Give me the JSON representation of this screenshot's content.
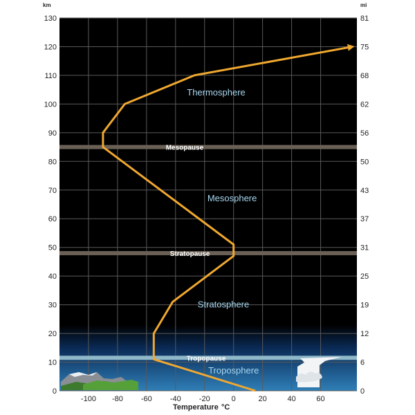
{
  "chart_data": {
    "type": "line",
    "x_label": "Temperature",
    "x_unit": "°C",
    "y_left_unit": "km",
    "y_right_unit": "mi",
    "xlim": [
      -120,
      85
    ],
    "ylim": [
      0,
      130
    ],
    "x_ticks": [
      -100,
      -80,
      -60,
      -40,
      -20,
      0,
      20,
      40,
      60
    ],
    "y_left_ticks": [
      0,
      10,
      20,
      30,
      40,
      50,
      60,
      70,
      80,
      90,
      100,
      110,
      120,
      130
    ],
    "y_right_ticks": [
      {
        "km": 0,
        "label": "0"
      },
      {
        "km": 10,
        "label": "6"
      },
      {
        "km": 20,
        "label": "12"
      },
      {
        "km": 30,
        "label": "19"
      },
      {
        "km": 40,
        "label": "25"
      },
      {
        "km": 50,
        "label": "31"
      },
      {
        "km": 60,
        "label": "37"
      },
      {
        "km": 70,
        "label": "43"
      },
      {
        "km": 80,
        "label": "50"
      },
      {
        "km": 90,
        "label": "56"
      },
      {
        "km": 100,
        "label": "62"
      },
      {
        "km": 110,
        "label": "68"
      },
      {
        "km": 120,
        "label": "75"
      },
      {
        "km": 130,
        "label": "81"
      }
    ],
    "series": [
      {
        "color": "#f0a830",
        "points": [
          {
            "x": 15,
            "y": 0
          },
          {
            "x": -55,
            "y": 11
          },
          {
            "x": -55,
            "y": 20
          },
          {
            "x": -42,
            "y": 31
          },
          {
            "x": 0,
            "y": 47
          },
          {
            "x": 0,
            "y": 51
          },
          {
            "x": -90,
            "y": 85
          },
          {
            "x": -90,
            "y": 90
          },
          {
            "x": -75,
            "y": 100
          },
          {
            "x": -27,
            "y": 110
          },
          {
            "x": 82,
            "y": 120
          }
        ]
      }
    ],
    "pause_lines": [
      {
        "label": "Tropopause",
        "y": 11.5,
        "color": "#8fb8c8"
      },
      {
        "label": "Stratopause",
        "y": 48,
        "color": "#6a6055"
      },
      {
        "label": "Mesopause",
        "y": 85,
        "color": "#6a6055"
      }
    ],
    "layer_labels": [
      {
        "label": "Troposphere",
        "x": 0,
        "y": 7
      },
      {
        "label": "Stratosphere",
        "x": -7,
        "y": 30
      },
      {
        "label": "Mesosphere",
        "x": -1,
        "y": 67
      },
      {
        "label": "Thermosphere",
        "x": -12,
        "y": 104
      }
    ],
    "grid": true,
    "colors": {
      "background": "#000000",
      "grid": "#5a5a5a",
      "lower_gradient_top": "#0a2a55",
      "lower_gradient_bottom": "#2f7fb8",
      "curve": "#f0a830"
    }
  }
}
